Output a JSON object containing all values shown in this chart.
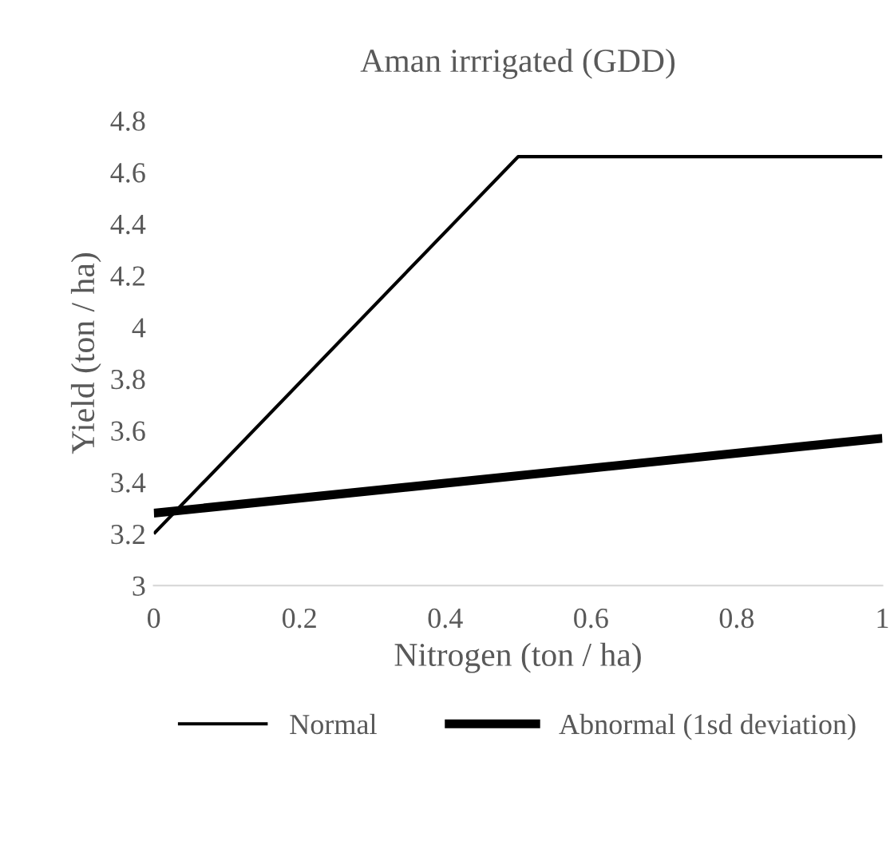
{
  "chart_data": {
    "type": "line",
    "title": "Aman irrrigated (GDD)",
    "xlabel": "Nitrogen (ton / ha)",
    "ylabel": "Yield (ton / ha)",
    "series": [
      {
        "name": "Normal",
        "color": "#000000",
        "x": [
          0,
          0.5,
          1
        ],
        "values": [
          3.2,
          4.66,
          4.66
        ]
      },
      {
        "name": "Abnormal (1sd deviation)",
        "color": "#000000",
        "x": [
          0,
          1
        ],
        "values": [
          3.28,
          3.57
        ]
      }
    ],
    "xlim": [
      0,
      1
    ],
    "xticks": [
      0,
      {
        "value": 0.2,
        "label": "0.2"
      },
      {
        "value": 0.4,
        "label": "0.4"
      },
      {
        "value": 0.6,
        "label": "0.6"
      },
      {
        "value": 0.8,
        "label": "0.8"
      },
      1
    ],
    "ylim": [
      3,
      4.8
    ],
    "yticks": [
      3,
      {
        "value": 3.2,
        "label": "3.2"
      },
      {
        "value": 3.4,
        "label": "3.4"
      },
      {
        "value": 3.6,
        "label": "3.6"
      },
      {
        "value": 3.8,
        "label": "3.8"
      },
      4,
      {
        "value": 4.2,
        "label": "4.2"
      },
      {
        "value": 4.4,
        "label": "4.4"
      },
      {
        "value": 4.6,
        "label": "4.6"
      },
      {
        "value": 4.8,
        "label": "4.8"
      }
    ],
    "grid": false,
    "legend": "bottom",
    "marker": "none",
    "line_style": "solid"
  }
}
